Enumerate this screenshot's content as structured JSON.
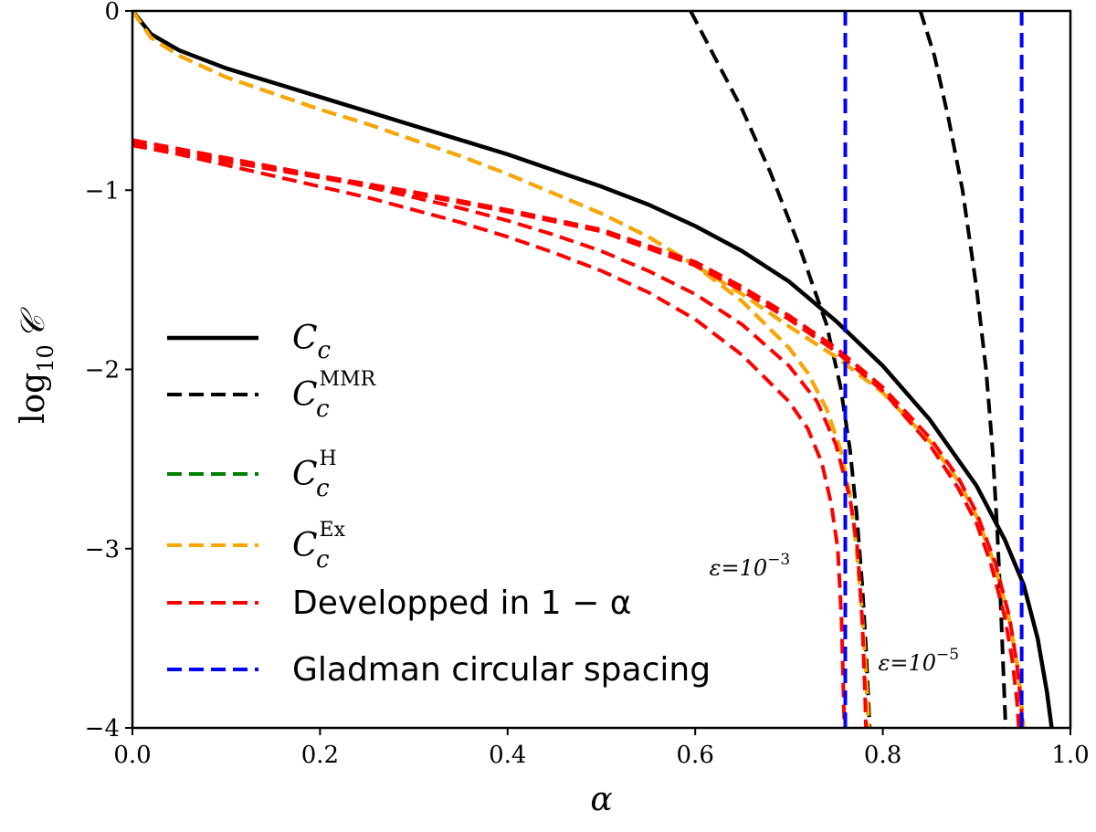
{
  "chart_data": {
    "type": "line",
    "title": "",
    "xlabel": "α",
    "ylabel": "log10 𝒞",
    "xlim": [
      0.0,
      1.0
    ],
    "ylim": [
      -4,
      0
    ],
    "xticks": [
      0.0,
      0.2,
      0.4,
      0.6,
      0.8,
      1.0
    ],
    "xtick_labels": [
      "0.0",
      "0.2",
      "0.4",
      "0.6",
      "0.8",
      "1.0"
    ],
    "yticks": [
      0,
      -1,
      -2,
      -3,
      -4
    ],
    "ytick_labels": [
      "0",
      "−1",
      "−2",
      "−3",
      "−4"
    ],
    "grid": false,
    "legend_position": "lower-left",
    "legend": [
      {
        "id": "Cc",
        "label": "C",
        "sub": "c",
        "sup": "",
        "color": "#000000",
        "dash": false
      },
      {
        "id": "CcMMR",
        "label": "C",
        "sub": "c",
        "sup": "MMR",
        "color": "#000000",
        "dash": true
      },
      {
        "id": "CcH",
        "label": "C",
        "sub": "c",
        "sup": "H",
        "color": "#008000",
        "dash": true
      },
      {
        "id": "CcEx",
        "label": "C",
        "sub": "c",
        "sup": "Ex",
        "color": "#ffa500",
        "dash": true
      },
      {
        "id": "Dev",
        "label": "Developped in 1 − α",
        "sub": "",
        "sup": "",
        "color": "#ff0000",
        "dash": true
      },
      {
        "id": "Glad",
        "label": "Gladman circular spacing",
        "sub": "",
        "sup": "",
        "color": "#0000ff",
        "dash": true
      }
    ],
    "series": [
      {
        "name": "C_c",
        "color": "#000000",
        "dash": false,
        "points": [
          [
            0,
            0
          ],
          [
            0.02,
            -0.13
          ],
          [
            0.05,
            -0.22
          ],
          [
            0.1,
            -0.32
          ],
          [
            0.15,
            -0.4
          ],
          [
            0.2,
            -0.48
          ],
          [
            0.25,
            -0.56
          ],
          [
            0.3,
            -0.64
          ],
          [
            0.35,
            -0.72
          ],
          [
            0.4,
            -0.8
          ],
          [
            0.45,
            -0.89
          ],
          [
            0.5,
            -0.98
          ],
          [
            0.55,
            -1.08
          ],
          [
            0.6,
            -1.2
          ],
          [
            0.65,
            -1.34
          ],
          [
            0.7,
            -1.51
          ],
          [
            0.75,
            -1.73
          ],
          [
            0.8,
            -1.98
          ],
          [
            0.85,
            -2.28
          ],
          [
            0.9,
            -2.65
          ],
          [
            0.93,
            -2.95
          ],
          [
            0.95,
            -3.2
          ],
          [
            0.965,
            -3.5
          ],
          [
            0.975,
            -3.8
          ],
          [
            0.98,
            -4.0
          ]
        ]
      },
      {
        "name": "C_c^MMR (eps=1e-3)",
        "color": "#000000",
        "dash": true,
        "points": [
          [
            0.595,
            0
          ],
          [
            0.62,
            -0.25
          ],
          [
            0.65,
            -0.55
          ],
          [
            0.68,
            -0.9
          ],
          [
            0.71,
            -1.3
          ],
          [
            0.74,
            -1.75
          ],
          [
            0.755,
            -2.1
          ],
          [
            0.765,
            -2.45
          ],
          [
            0.772,
            -2.8
          ],
          [
            0.778,
            -3.2
          ],
          [
            0.782,
            -3.55
          ],
          [
            0.786,
            -4.0
          ]
        ]
      },
      {
        "name": "C_c^MMR (eps=1e-5)",
        "color": "#000000",
        "dash": true,
        "points": [
          [
            0.84,
            0
          ],
          [
            0.855,
            -0.25
          ],
          [
            0.87,
            -0.6
          ],
          [
            0.885,
            -1.0
          ],
          [
            0.9,
            -1.55
          ],
          [
            0.91,
            -2.0
          ],
          [
            0.917,
            -2.45
          ],
          [
            0.922,
            -2.9
          ],
          [
            0.926,
            -3.35
          ],
          [
            0.929,
            -3.75
          ],
          [
            0.931,
            -4.0
          ]
        ]
      },
      {
        "name": "C_c^H (eps=1e-3)",
        "color": "#008000",
        "dash": true,
        "points": [
          [
            0,
            0
          ],
          [
            0.02,
            -0.15
          ],
          [
            0.05,
            -0.25
          ],
          [
            0.1,
            -0.37
          ],
          [
            0.15,
            -0.46
          ],
          [
            0.2,
            -0.55
          ],
          [
            0.25,
            -0.63
          ],
          [
            0.3,
            -0.72
          ],
          [
            0.35,
            -0.81
          ],
          [
            0.4,
            -0.91
          ],
          [
            0.45,
            -1.02
          ],
          [
            0.5,
            -1.13
          ],
          [
            0.55,
            -1.26
          ],
          [
            0.6,
            -1.42
          ],
          [
            0.65,
            -1.62
          ],
          [
            0.7,
            -1.88
          ],
          [
            0.72,
            -2.02
          ],
          [
            0.74,
            -2.22
          ],
          [
            0.755,
            -2.45
          ],
          [
            0.765,
            -2.7
          ],
          [
            0.772,
            -3.0
          ],
          [
            0.777,
            -3.3
          ],
          [
            0.781,
            -3.6
          ],
          [
            0.785,
            -4.0
          ]
        ]
      },
      {
        "name": "C_c^Ex (eps=1e-3)",
        "color": "#ffa500",
        "dash": true,
        "points": [
          [
            0,
            0
          ],
          [
            0.02,
            -0.15
          ],
          [
            0.05,
            -0.25
          ],
          [
            0.1,
            -0.37
          ],
          [
            0.15,
            -0.46
          ],
          [
            0.2,
            -0.55
          ],
          [
            0.25,
            -0.63
          ],
          [
            0.3,
            -0.72
          ],
          [
            0.35,
            -0.81
          ],
          [
            0.4,
            -0.91
          ],
          [
            0.45,
            -1.02
          ],
          [
            0.5,
            -1.13
          ],
          [
            0.55,
            -1.26
          ],
          [
            0.6,
            -1.42
          ],
          [
            0.65,
            -1.62
          ],
          [
            0.7,
            -1.88
          ],
          [
            0.72,
            -2.02
          ],
          [
            0.74,
            -2.22
          ],
          [
            0.755,
            -2.45
          ],
          [
            0.765,
            -2.7
          ],
          [
            0.772,
            -3.0
          ],
          [
            0.777,
            -3.3
          ],
          [
            0.781,
            -3.6
          ],
          [
            0.785,
            -4.0
          ]
        ]
      },
      {
        "name": "C_c^H (eps=1e-5)",
        "color": "#008000",
        "dash": true,
        "points": [
          [
            0.6,
            -1.42
          ],
          [
            0.65,
            -1.58
          ],
          [
            0.7,
            -1.76
          ],
          [
            0.75,
            -1.93
          ],
          [
            0.8,
            -2.13
          ],
          [
            0.85,
            -2.4
          ],
          [
            0.88,
            -2.62
          ],
          [
            0.9,
            -2.82
          ],
          [
            0.92,
            -3.1
          ],
          [
            0.935,
            -3.4
          ],
          [
            0.945,
            -3.7
          ],
          [
            0.95,
            -4.0
          ]
        ]
      },
      {
        "name": "C_c^Ex (eps=1e-5)",
        "color": "#ffa500",
        "dash": true,
        "points": [
          [
            0.6,
            -1.42
          ],
          [
            0.65,
            -1.58
          ],
          [
            0.7,
            -1.76
          ],
          [
            0.75,
            -1.93
          ],
          [
            0.8,
            -2.13
          ],
          [
            0.85,
            -2.4
          ],
          [
            0.88,
            -2.62
          ],
          [
            0.9,
            -2.82
          ],
          [
            0.92,
            -3.1
          ],
          [
            0.935,
            -3.4
          ],
          [
            0.945,
            -3.7
          ],
          [
            0.95,
            -4.0
          ]
        ]
      },
      {
        "name": "Developped in 1-alpha (eps=1e-3)",
        "color": "#ff0000",
        "dash": true,
        "points": [
          [
            0,
            -0.75
          ],
          [
            0.05,
            -0.8
          ],
          [
            0.1,
            -0.86
          ],
          [
            0.15,
            -0.92
          ],
          [
            0.2,
            -0.98
          ],
          [
            0.25,
            -1.04
          ],
          [
            0.3,
            -1.11
          ],
          [
            0.35,
            -1.18
          ],
          [
            0.4,
            -1.26
          ],
          [
            0.45,
            -1.35
          ],
          [
            0.5,
            -1.45
          ],
          [
            0.55,
            -1.57
          ],
          [
            0.6,
            -1.72
          ],
          [
            0.65,
            -1.92
          ],
          [
            0.7,
            -2.18
          ],
          [
            0.72,
            -2.33
          ],
          [
            0.735,
            -2.52
          ],
          [
            0.745,
            -2.75
          ],
          [
            0.752,
            -3.0
          ],
          [
            0.756,
            -3.4
          ],
          [
            0.758,
            -3.8
          ],
          [
            0.759,
            -4.0
          ]
        ]
      },
      {
        "name": "Developped in 1-alpha (eps=1e-3) b",
        "color": "#ff0000",
        "dash": true,
        "points": [
          [
            0,
            -0.72
          ],
          [
            0.05,
            -0.77
          ],
          [
            0.1,
            -0.82
          ],
          [
            0.15,
            -0.87
          ],
          [
            0.2,
            -0.92
          ],
          [
            0.25,
            -0.98
          ],
          [
            0.3,
            -1.04
          ],
          [
            0.35,
            -1.1
          ],
          [
            0.4,
            -1.17
          ],
          [
            0.45,
            -1.25
          ],
          [
            0.5,
            -1.34
          ],
          [
            0.55,
            -1.45
          ],
          [
            0.6,
            -1.58
          ],
          [
            0.65,
            -1.75
          ],
          [
            0.7,
            -1.98
          ],
          [
            0.73,
            -2.18
          ],
          [
            0.75,
            -2.42
          ],
          [
            0.765,
            -2.72
          ],
          [
            0.773,
            -3.0
          ],
          [
            0.778,
            -3.4
          ],
          [
            0.781,
            -3.8
          ],
          [
            0.782,
            -4.0
          ]
        ]
      },
      {
        "name": "Developped in 1-alpha (eps=1e-5)",
        "color": "#ff0000",
        "dash": true,
        "points": [
          [
            0,
            -0.75
          ],
          [
            0.1,
            -0.84
          ],
          [
            0.2,
            -0.93
          ],
          [
            0.3,
            -1.02
          ],
          [
            0.4,
            -1.12
          ],
          [
            0.5,
            -1.23
          ],
          [
            0.6,
            -1.42
          ],
          [
            0.65,
            -1.56
          ],
          [
            0.7,
            -1.72
          ],
          [
            0.75,
            -1.9
          ],
          [
            0.8,
            -2.12
          ],
          [
            0.85,
            -2.42
          ],
          [
            0.88,
            -2.66
          ],
          [
            0.9,
            -2.86
          ],
          [
            0.915,
            -3.08
          ],
          [
            0.93,
            -3.38
          ],
          [
            0.938,
            -3.62
          ],
          [
            0.943,
            -3.85
          ],
          [
            0.945,
            -4.0
          ]
        ]
      },
      {
        "name": "Developped in 1-alpha (eps=1e-5) b",
        "color": "#ff0000",
        "dash": true,
        "points": [
          [
            0,
            -0.74
          ],
          [
            0.1,
            -0.83
          ],
          [
            0.2,
            -0.92
          ],
          [
            0.3,
            -1.01
          ],
          [
            0.4,
            -1.11
          ],
          [
            0.5,
            -1.22
          ],
          [
            0.6,
            -1.4
          ],
          [
            0.65,
            -1.54
          ],
          [
            0.7,
            -1.7
          ],
          [
            0.75,
            -1.88
          ],
          [
            0.8,
            -2.1
          ],
          [
            0.85,
            -2.38
          ],
          [
            0.88,
            -2.6
          ],
          [
            0.9,
            -2.8
          ],
          [
            0.92,
            -3.08
          ],
          [
            0.935,
            -3.38
          ],
          [
            0.943,
            -3.65
          ],
          [
            0.947,
            -3.85
          ],
          [
            0.949,
            -4.0
          ]
        ]
      },
      {
        "name": "Gladman circular spacing (eps=1e-3)",
        "color": "#0000ff",
        "dash": true,
        "points": [
          [
            0.76,
            0
          ],
          [
            0.76,
            -4
          ]
        ]
      },
      {
        "name": "Gladman circular spacing (eps=1e-5)",
        "color": "#0000ff",
        "dash": true,
        "points": [
          [
            0.948,
            0
          ],
          [
            0.948,
            -4
          ]
        ]
      }
    ],
    "annotations": [
      {
        "text": "ε=10",
        "sup": "−3",
        "x": 0.615,
        "y": -3.15
      },
      {
        "text": "ε=10",
        "sup": "−5",
        "x": 0.795,
        "y": -3.68
      }
    ]
  }
}
